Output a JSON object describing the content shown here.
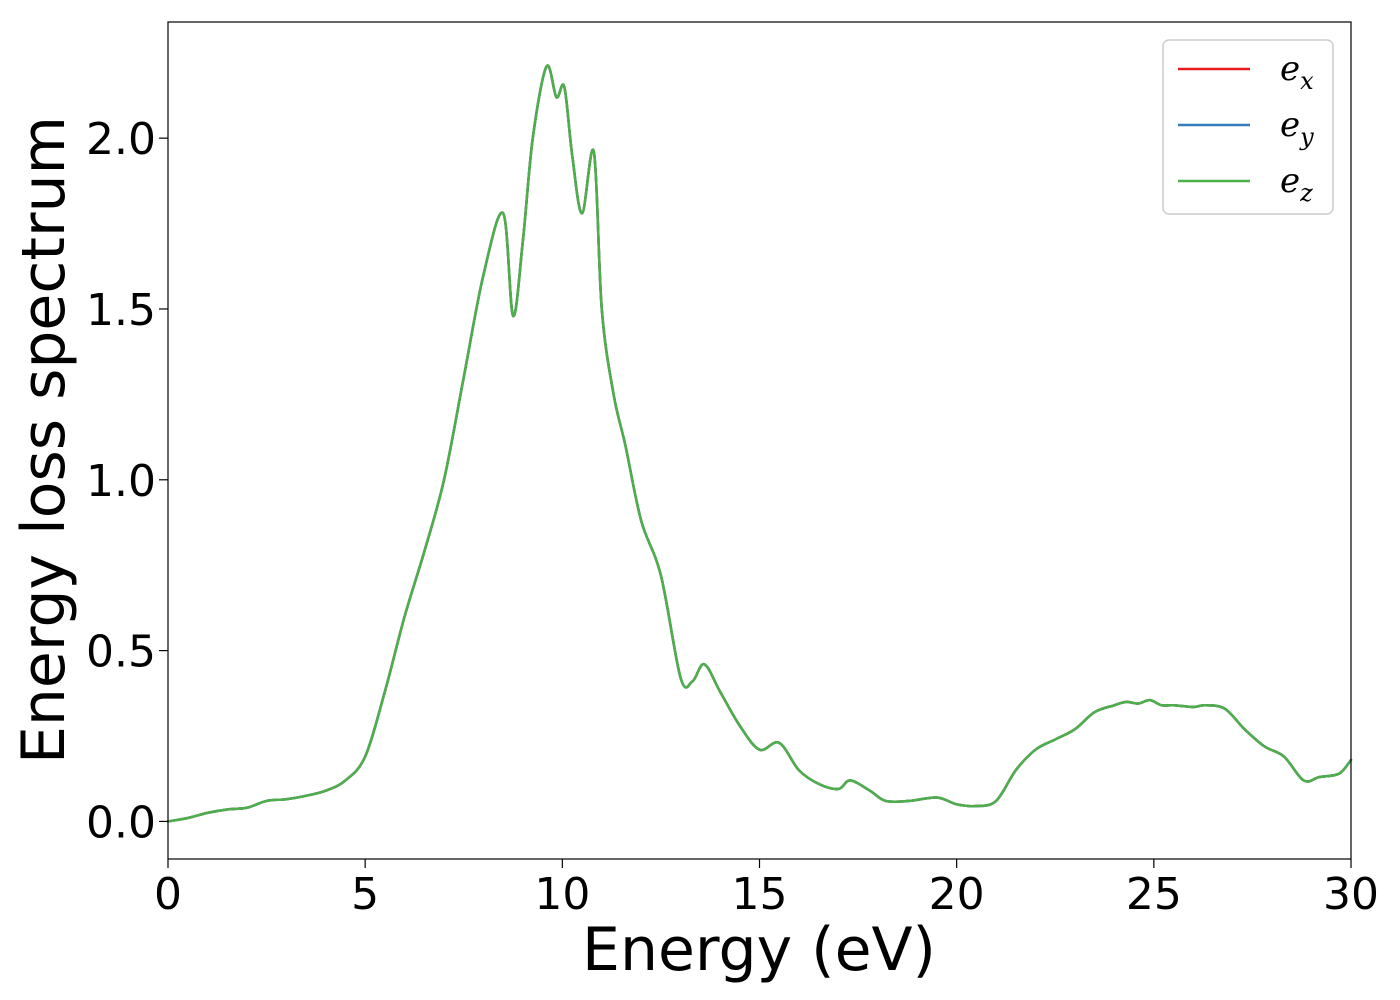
{
  "chart_data": {
    "type": "line",
    "xlabel": "Energy (eV)",
    "ylabel": "Energy loss spectrum",
    "xlim": [
      0,
      30
    ],
    "ylim": [
      -0.11,
      2.34
    ],
    "xticks": [
      0,
      5,
      10,
      15,
      20,
      25,
      30
    ],
    "xtick_labels": [
      "0",
      "5",
      "10",
      "15",
      "20",
      "25",
      "30"
    ],
    "yticks": [
      0.0,
      0.5,
      1.0,
      1.5,
      2.0
    ],
    "ytick_labels": [
      "0.0",
      "0.5",
      "1.0",
      "1.5",
      "2.0"
    ],
    "grid": false,
    "legend_position": "top-right",
    "x": [
      0,
      0.5,
      1,
      1.5,
      2,
      2.5,
      3,
      3.5,
      4,
      4.5,
      5,
      5.5,
      6,
      6.5,
      7,
      7.5,
      8,
      8.5,
      8.75,
      9,
      9.25,
      9.6,
      9.85,
      10.05,
      10.25,
      10.5,
      10.8,
      11,
      11.3,
      11.6,
      12,
      12.5,
      13,
      13.3,
      13.6,
      14,
      14.5,
      15,
      15.5,
      16,
      16.5,
      17,
      17.3,
      17.8,
      18.2,
      18.8,
      19.5,
      20,
      20.5,
      21,
      21.5,
      22,
      22.5,
      23,
      23.5,
      24,
      24.3,
      24.6,
      24.9,
      25.2,
      25.5,
      26,
      26.3,
      26.8,
      27.3,
      27.8,
      28.3,
      28.8,
      29.2,
      29.7,
      30
    ],
    "series": [
      {
        "name": "e_x",
        "legend_base": "e",
        "legend_sub": "x",
        "color": "#e41a1c",
        "y": [
          0.0,
          0.01,
          0.025,
          0.035,
          0.04,
          0.06,
          0.065,
          0.075,
          0.09,
          0.12,
          0.19,
          0.38,
          0.6,
          0.79,
          1.0,
          1.3,
          1.6,
          1.78,
          1.48,
          1.7,
          2.0,
          2.21,
          2.12,
          2.15,
          1.95,
          1.78,
          1.96,
          1.5,
          1.25,
          1.1,
          0.88,
          0.72,
          0.42,
          0.41,
          0.46,
          0.38,
          0.28,
          0.21,
          0.23,
          0.15,
          0.11,
          0.095,
          0.12,
          0.09,
          0.06,
          0.06,
          0.07,
          0.05,
          0.045,
          0.06,
          0.15,
          0.21,
          0.24,
          0.27,
          0.32,
          0.34,
          0.35,
          0.345,
          0.355,
          0.34,
          0.34,
          0.335,
          0.34,
          0.33,
          0.27,
          0.22,
          0.19,
          0.12,
          0.13,
          0.14,
          0.18
        ]
      },
      {
        "name": "e_y",
        "legend_base": "e",
        "legend_sub": "y",
        "color": "#377eb8",
        "y": [
          0.0,
          0.01,
          0.025,
          0.035,
          0.04,
          0.06,
          0.065,
          0.075,
          0.09,
          0.12,
          0.19,
          0.38,
          0.6,
          0.79,
          1.0,
          1.3,
          1.6,
          1.78,
          1.48,
          1.7,
          2.0,
          2.21,
          2.12,
          2.15,
          1.95,
          1.78,
          1.96,
          1.5,
          1.25,
          1.1,
          0.88,
          0.72,
          0.42,
          0.41,
          0.46,
          0.38,
          0.28,
          0.21,
          0.23,
          0.15,
          0.11,
          0.095,
          0.12,
          0.09,
          0.06,
          0.06,
          0.07,
          0.05,
          0.045,
          0.06,
          0.15,
          0.21,
          0.24,
          0.27,
          0.32,
          0.34,
          0.35,
          0.345,
          0.355,
          0.34,
          0.34,
          0.335,
          0.34,
          0.33,
          0.27,
          0.22,
          0.19,
          0.12,
          0.13,
          0.14,
          0.18
        ]
      },
      {
        "name": "e_z",
        "legend_base": "e",
        "legend_sub": "z",
        "color": "#4daf4a",
        "y": [
          0.0,
          0.01,
          0.025,
          0.035,
          0.04,
          0.06,
          0.065,
          0.075,
          0.09,
          0.12,
          0.19,
          0.38,
          0.6,
          0.79,
          1.0,
          1.3,
          1.6,
          1.78,
          1.48,
          1.7,
          2.0,
          2.21,
          2.12,
          2.15,
          1.95,
          1.78,
          1.96,
          1.5,
          1.25,
          1.1,
          0.88,
          0.72,
          0.42,
          0.41,
          0.46,
          0.38,
          0.28,
          0.21,
          0.23,
          0.15,
          0.11,
          0.095,
          0.12,
          0.09,
          0.06,
          0.06,
          0.07,
          0.05,
          0.045,
          0.06,
          0.15,
          0.21,
          0.24,
          0.27,
          0.32,
          0.34,
          0.35,
          0.345,
          0.355,
          0.34,
          0.34,
          0.335,
          0.34,
          0.33,
          0.27,
          0.22,
          0.19,
          0.12,
          0.13,
          0.14,
          0.18
        ]
      }
    ]
  }
}
